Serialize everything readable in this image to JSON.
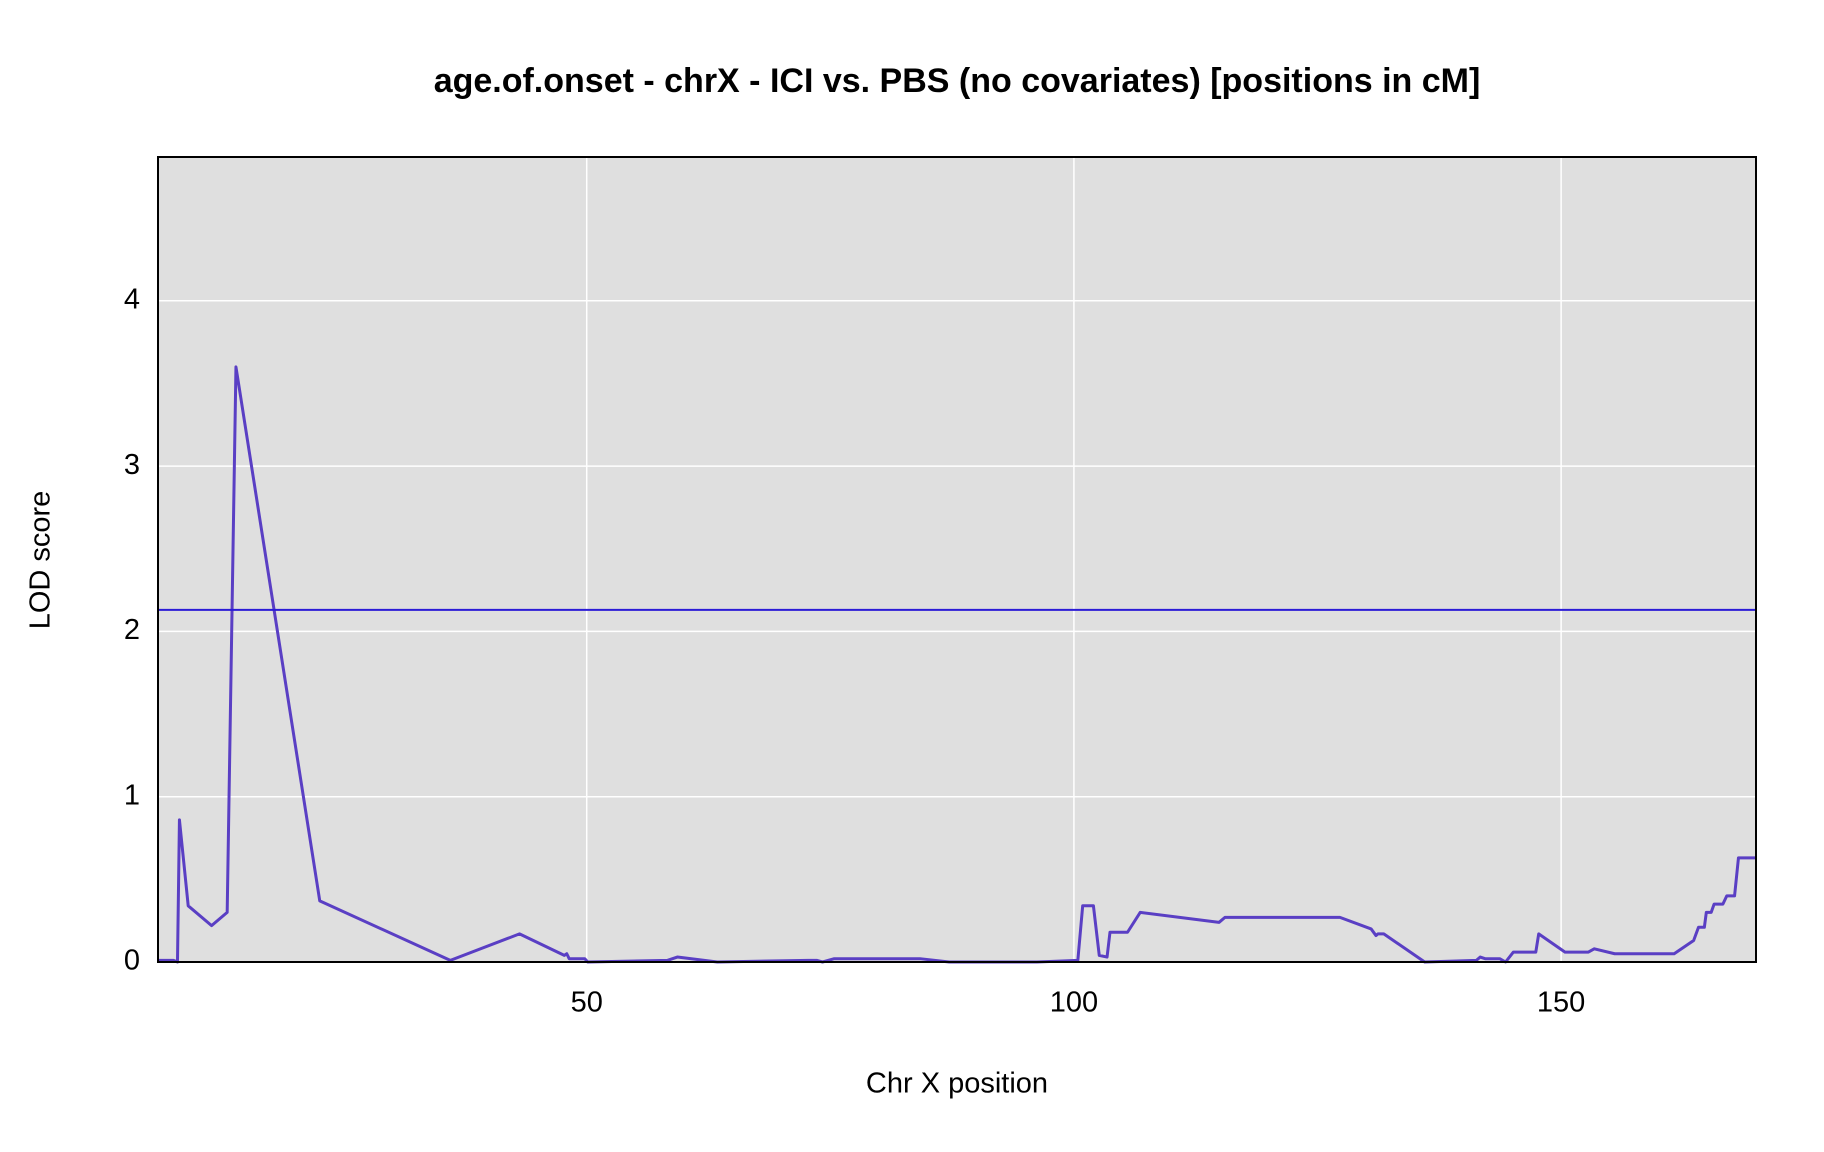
{
  "chart_data": {
    "type": "line",
    "title": "age.of.onset - chrX - ICI vs. PBS (no covariates) [positions in cM]",
    "x_label": "Chr X position",
    "y_label": "LOD score",
    "x": [
      6.0,
      7.6,
      8.0,
      8.2,
      9.1,
      11.5,
      13.1,
      14.0,
      22.6,
      36.0,
      43.1,
      47.7,
      47.95,
      48.2,
      49.8,
      50.1,
      58.3,
      59.3,
      63.4,
      72.7,
      73.6,
      74.2,
      75.4,
      84.2,
      87.2,
      96.2,
      100.4,
      100.9,
      102.0,
      102.6,
      103.4,
      103.7,
      105.5,
      106.8,
      114.9,
      115.5,
      118.7,
      127.3,
      130.5,
      131.0,
      131.2,
      131.8,
      136.0,
      141.3,
      141.7,
      142.2,
      143.7,
      144.3,
      145.1,
      147.4,
      147.7,
      150.4,
      152.8,
      153.4,
      155.5,
      161.6,
      163.6,
      164.1,
      164.7,
      164.9,
      165.4,
      165.7,
      166.6,
      167.0,
      167.8,
      168.2,
      170.0
    ],
    "series": [
      {
        "color": "#5a3fc4",
        "values": [
          0.01,
          0.01,
          0,
          0.86,
          0.34,
          0.22,
          0.3,
          3.6,
          0.37,
          0.01,
          0.17,
          0.04,
          0.05,
          0.02,
          0.02,
          0,
          0.01,
          0.03,
          0,
          0.01,
          0.01,
          0,
          0.02,
          0.02,
          0,
          0,
          0.01,
          0.34,
          0.34,
          0.04,
          0.03,
          0.18,
          0.18,
          0.3,
          0.24,
          0.27,
          0.27,
          0.27,
          0.2,
          0.16,
          0.17,
          0.17,
          0,
          0.01,
          0.03,
          0.02,
          0.02,
          0,
          0.06,
          0.06,
          0.17,
          0.06,
          0.06,
          0.08,
          0.05,
          0.05,
          0.13,
          0.21,
          0.21,
          0.3,
          0.3,
          0.35,
          0.35,
          0.4,
          0.4,
          0.63,
          0.63
        ]
      }
    ],
    "threshold": 2.13,
    "threshold_color": "#2b1bd6",
    "xlim": [
      6,
      170
    ],
    "ylim": [
      0,
      4.87
    ],
    "xticks": [
      50,
      100,
      150
    ],
    "yticks": [
      0,
      1,
      2,
      3,
      4
    ],
    "grid": true,
    "background": "#dfdfdf"
  }
}
